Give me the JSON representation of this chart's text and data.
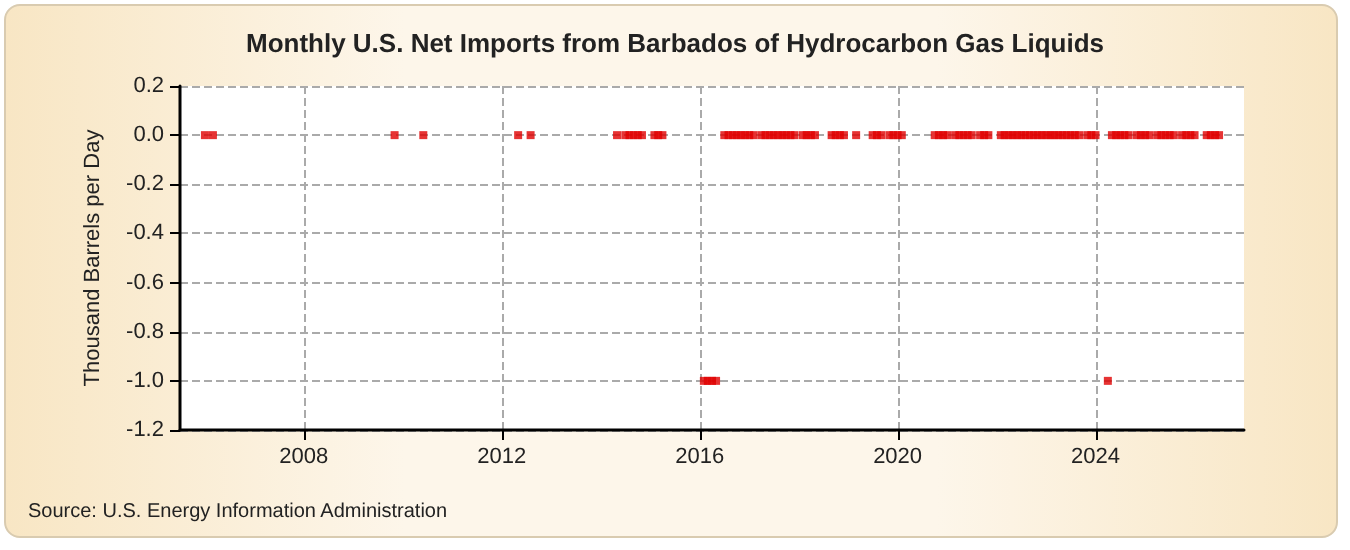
{
  "chart_data": {
    "type": "scatter",
    "title": "Monthly U.S. Net Imports from Barbados of Hydrocarbon Gas Liquids",
    "ylabel": "Thousand Barrels per Day",
    "annotations": [
      "Source: U.S. Energy Information Administration"
    ],
    "series": [
      {
        "color": "#e00000",
        "x": [
          "2006-01",
          "2006-03",
          "2009-11",
          "2010-06",
          "2012-05",
          "2012-08",
          "2014-05",
          "2014-07",
          "2014-08",
          "2014-09",
          "2014-10",
          "2014-11",
          "2015-02",
          "2015-03",
          "2015-04",
          "2016-02",
          "2016-03",
          "2016-04",
          "2016-05",
          "2016-07",
          "2016-08",
          "2016-09",
          "2016-10",
          "2016-11",
          "2016-12",
          "2017-01",
          "2017-02",
          "2017-04",
          "2017-05",
          "2017-06",
          "2017-07",
          "2017-08",
          "2017-09",
          "2017-10",
          "2017-11",
          "2017-12",
          "2018-02",
          "2018-03",
          "2018-04",
          "2018-05",
          "2018-09",
          "2018-10",
          "2018-11",
          "2018-12",
          "2019-03",
          "2019-07",
          "2019-08",
          "2019-09",
          "2019-11",
          "2019-12",
          "2020-01",
          "2020-02",
          "2020-10",
          "2020-11",
          "2020-12",
          "2021-01",
          "2021-03",
          "2021-04",
          "2021-05",
          "2021-06",
          "2021-07",
          "2021-09",
          "2021-10",
          "2021-11",
          "2022-02",
          "2022-03",
          "2022-04",
          "2022-05",
          "2022-06",
          "2022-07",
          "2022-08",
          "2022-09",
          "2022-10",
          "2022-11",
          "2022-12",
          "2023-01",
          "2023-02",
          "2023-03",
          "2023-04",
          "2023-05",
          "2023-06",
          "2023-07",
          "2023-08",
          "2023-09",
          "2023-11",
          "2023-12",
          "2024-01",
          "2024-04",
          "2024-05",
          "2024-06",
          "2024-07",
          "2024-08",
          "2024-09",
          "2024-11",
          "2024-12",
          "2025-01",
          "2025-02",
          "2025-04",
          "2025-05",
          "2025-06",
          "2025-07",
          "2025-08",
          "2025-10",
          "2025-11",
          "2025-12",
          "2026-01",
          "2026-04",
          "2026-05",
          "2026-06",
          "2026-07"
        ],
        "values": [
          0,
          0,
          0,
          0,
          0,
          0,
          0,
          0,
          0,
          0,
          0,
          0,
          0,
          0,
          0,
          -1,
          -1,
          -1,
          -1,
          0,
          0,
          0,
          0,
          0,
          0,
          0,
          0,
          0,
          0,
          0,
          0,
          0,
          0,
          0,
          0,
          0,
          0,
          0,
          0,
          0,
          0,
          0,
          0,
          0,
          0,
          0,
          0,
          0,
          0,
          0,
          0,
          0,
          0,
          0,
          0,
          0,
          0,
          0,
          0,
          0,
          0,
          0,
          0,
          0,
          0,
          0,
          0,
          0,
          0,
          0,
          0,
          0,
          0,
          0,
          0,
          0,
          0,
          0,
          0,
          0,
          0,
          0,
          0,
          0,
          0,
          0,
          0,
          -1,
          0,
          0,
          0,
          0,
          0,
          0,
          0,
          0,
          0,
          0,
          0,
          0,
          0,
          0,
          0,
          0,
          0,
          0,
          0,
          0,
          0,
          0
        ]
      }
    ],
    "xlim": [
      "2005-07",
      "2027-01"
    ],
    "xticks": [
      "2008",
      "2012",
      "2016",
      "2020",
      "2024"
    ],
    "ylim": [
      -1.2,
      0.2
    ],
    "yticks": [
      {
        "value": -1.2,
        "label": "-1.2"
      },
      {
        "value": -1.0,
        "label": "-1.0"
      },
      {
        "value": -0.8,
        "label": "-0.8"
      },
      {
        "value": -0.6,
        "label": "-0.6"
      },
      {
        "value": -0.4,
        "label": "-0.4"
      },
      {
        "value": -0.2,
        "label": "-0.2"
      },
      {
        "value": 0,
        "label": "0.0"
      },
      {
        "value": 0.2,
        "label": "0.2"
      }
    ],
    "grid": true,
    "marker": "square"
  }
}
